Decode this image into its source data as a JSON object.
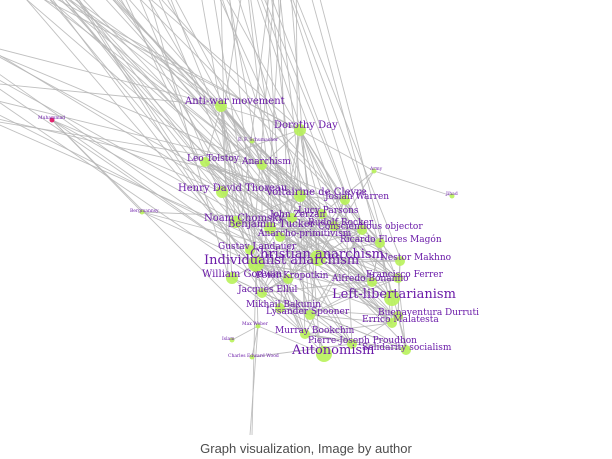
{
  "caption": "Graph visualization, Image by author",
  "colors": {
    "edge": "#b5b5b5",
    "node": "#b8f25a",
    "node_highlight": "#e01060",
    "label": "#6a1aa8"
  },
  "graph": {
    "nodes": [
      {
        "id": "anti-war-movement",
        "label": "Anti-war movement",
        "size": "medium"
      },
      {
        "id": "dorothy-day",
        "label": "Dorothy Day",
        "size": "medium"
      },
      {
        "id": "leo-tolstoy",
        "label": "Leo Tolstoy",
        "size": "small"
      },
      {
        "id": "anarchism",
        "label": "Anarchism",
        "size": "small"
      },
      {
        "id": "henry-david-thoreau",
        "label": "Henry David Thoreau",
        "size": "medium"
      },
      {
        "id": "voltairine-de-cleyre",
        "label": "Voltairine de Cleyre",
        "size": "medium"
      },
      {
        "id": "josiah-warren",
        "label": "Josiah Warren",
        "size": "small"
      },
      {
        "id": "lucy-parsons",
        "label": "Lucy Parsons",
        "size": "small"
      },
      {
        "id": "noam-chomsky",
        "label": "Noam Chomsky",
        "size": "medium"
      },
      {
        "id": "john-zerzan",
        "label": "John Zerzan",
        "size": "small"
      },
      {
        "id": "benjamin-tucker",
        "label": "Benjamin Tucker",
        "size": "medium"
      },
      {
        "id": "rudolf-rocker",
        "label": "Rudolf Rocker",
        "size": "small"
      },
      {
        "id": "anarcho-primitivism",
        "label": "Anarcho-primitivism",
        "size": "small"
      },
      {
        "id": "conscientious-objector",
        "label": "Conscientious objector",
        "size": "small"
      },
      {
        "id": "ricardo-flores-magon",
        "label": "Ricardo Flores Magón",
        "size": "small"
      },
      {
        "id": "gustav-landauer",
        "label": "Gustav Landauer",
        "size": "small"
      },
      {
        "id": "christian-anarchism",
        "label": "Christian anarchism",
        "size": "large"
      },
      {
        "id": "nestor-makhno",
        "label": "Nestor Makhno",
        "size": "small"
      },
      {
        "id": "individualist-anarchism",
        "label": "Individualist anarchism",
        "size": "large"
      },
      {
        "id": "william-godwin",
        "label": "William Godwin",
        "size": "medium"
      },
      {
        "id": "peter-kropotkin",
        "label": "Peter Kropotkin",
        "size": "small"
      },
      {
        "id": "alfredo-bonanno",
        "label": "Alfredo Bonanno",
        "size": "small"
      },
      {
        "id": "francisco-ferrer",
        "label": "Francisco Ferrer",
        "size": "small"
      },
      {
        "id": "jacques-ellul",
        "label": "Jacques Ellul",
        "size": "small"
      },
      {
        "id": "libertarianism",
        "label": "Left-libertarianism",
        "size": "large"
      },
      {
        "id": "mikhail-bakunin",
        "label": "Mikhail Bakunin",
        "size": "small"
      },
      {
        "id": "lysander-spooner",
        "label": "Lysander Spooner",
        "size": "small"
      },
      {
        "id": "buenaventura-durruti",
        "label": "Buenaventura Durruti",
        "size": "small"
      },
      {
        "id": "errico-malatesta",
        "label": "Errico Malatesta",
        "size": "small"
      },
      {
        "id": "murray-bookchin",
        "label": "Murray Bookchin",
        "size": "small"
      },
      {
        "id": "pierre-joseph-proudhon",
        "label": "Pierre-Joseph Proudhon",
        "size": "small"
      },
      {
        "id": "autonomism",
        "label": "Autonomism",
        "size": "large"
      },
      {
        "id": "solidarity-socialism",
        "label": "Solidarity socialism",
        "size": "small"
      },
      {
        "id": "max-weber",
        "label": "Max Weber",
        "size": "tiny"
      },
      {
        "id": "muhammad",
        "label": "Muhammad",
        "size": "tiny",
        "highlight": true
      },
      {
        "id": "left-node",
        "label": "Bergmannsy",
        "size": "tiny"
      },
      {
        "id": "top-small-node",
        "label": "E. F. Schumacher",
        "size": "tiny"
      },
      {
        "id": "right-node-1",
        "label": "Army",
        "size": "tiny"
      },
      {
        "id": "right-node-2",
        "label": "Jihad",
        "size": "tiny"
      },
      {
        "id": "bottom-node-1",
        "label": "Islam",
        "size": "tiny"
      },
      {
        "id": "bottom-node-2",
        "label": "Charles Edward Wood",
        "size": "tiny"
      }
    ]
  }
}
